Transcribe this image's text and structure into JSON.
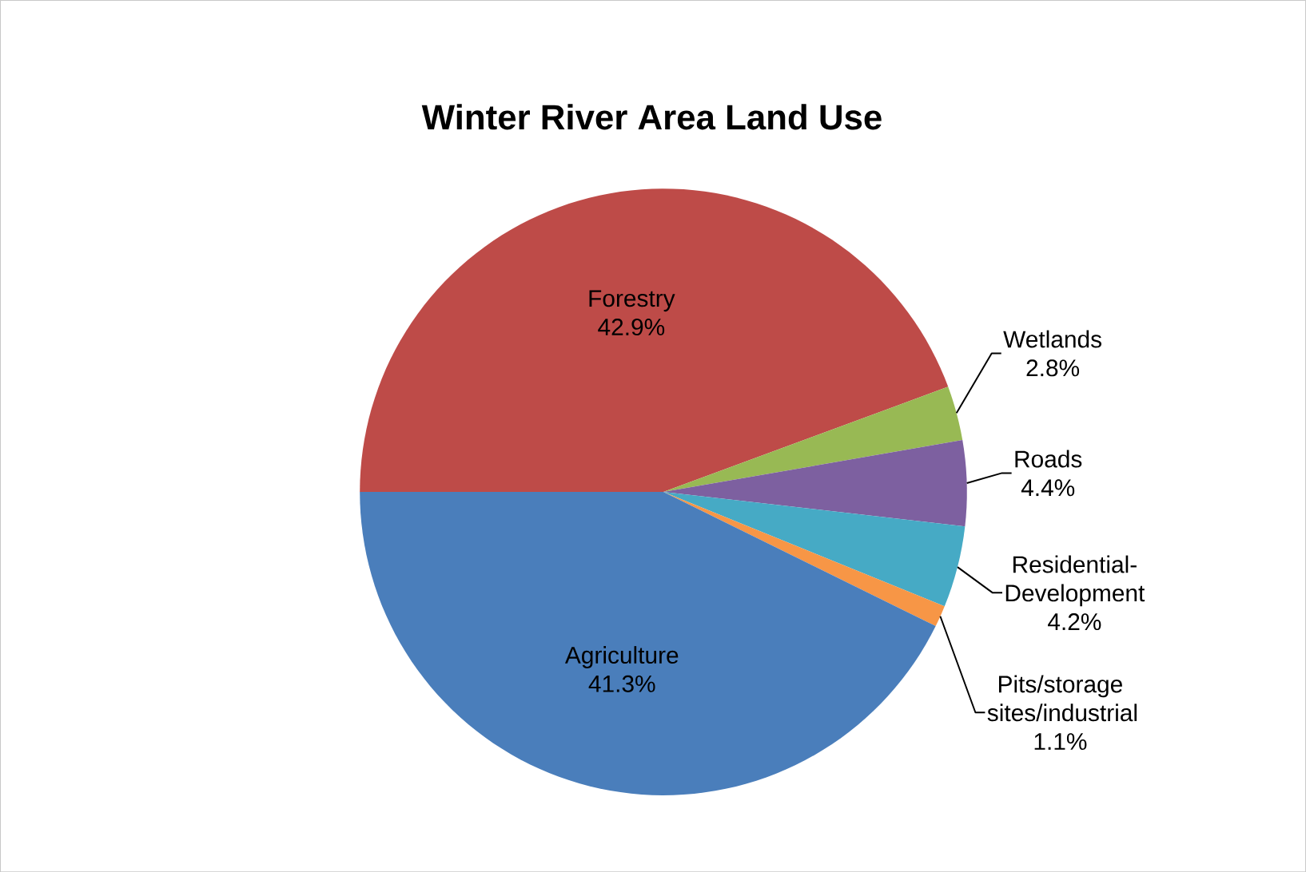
{
  "chart_data": {
    "type": "pie",
    "title": "Winter River Area Land Use",
    "categories": [
      "Forestry",
      "Wetlands",
      "Roads",
      "Residential-Development",
      "Pits/storage sites/industrial",
      "Agriculture"
    ],
    "values": [
      42.9,
      2.8,
      4.4,
      4.2,
      1.1,
      41.3
    ],
    "value_labels": [
      "42.9%",
      "2.8%",
      "4.4%",
      "4.2%",
      "1.1%",
      "41.3%"
    ],
    "colors": [
      "#be4b48",
      "#98b954",
      "#7d60a0",
      "#46aac5",
      "#f79646",
      "#4a7ebb"
    ]
  }
}
